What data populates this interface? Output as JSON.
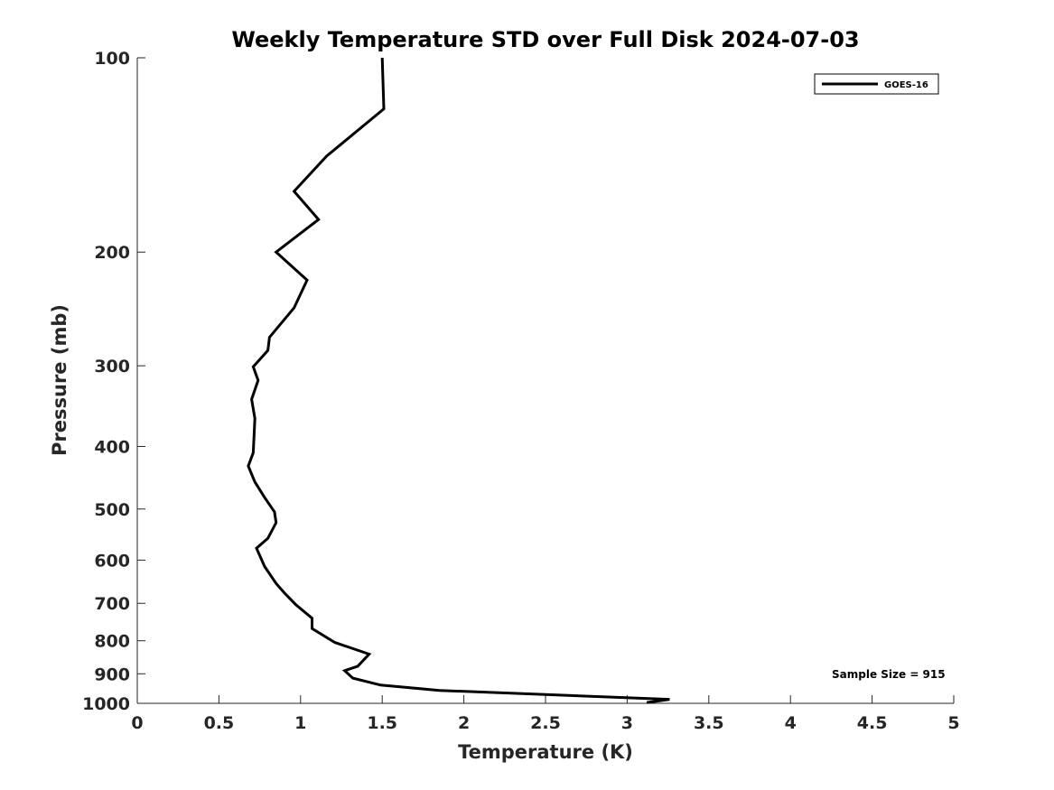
{
  "chart_data": {
    "type": "line",
    "title": "Weekly Temperature STD over Full Disk 2024-07-03",
    "xlabel": "Temperature (K)",
    "ylabel": "Pressure (mb)",
    "xlim": [
      0,
      5
    ],
    "ylim": [
      100,
      1000
    ],
    "yscale": "log",
    "y_reversed": true,
    "grid": false,
    "legend_position": "top-right",
    "x_ticks": [
      "0",
      "0.5",
      "1",
      "1.5",
      "2",
      "2.5",
      "3",
      "3.5",
      "4",
      "4.5",
      "5"
    ],
    "y_ticks": [
      "100",
      "200",
      "300",
      "400",
      "500",
      "600",
      "700",
      "800",
      "900",
      "1000"
    ],
    "series": [
      {
        "name": "GOES-16",
        "color": "#000000",
        "points": [
          [
            1.5,
            100
          ],
          [
            1.51,
            120
          ],
          [
            1.16,
            142
          ],
          [
            0.96,
            161
          ],
          [
            1.11,
            178
          ],
          [
            0.85,
            200
          ],
          [
            1.04,
            221
          ],
          [
            0.96,
            244
          ],
          [
            0.81,
            271
          ],
          [
            0.8,
            284
          ],
          [
            0.71,
            301
          ],
          [
            0.74,
            316
          ],
          [
            0.7,
            338
          ],
          [
            0.72,
            362
          ],
          [
            0.71,
            409
          ],
          [
            0.68,
            429
          ],
          [
            0.72,
            454
          ],
          [
            0.78,
            480
          ],
          [
            0.84,
            505
          ],
          [
            0.85,
            525
          ],
          [
            0.8,
            555
          ],
          [
            0.73,
            575
          ],
          [
            0.78,
            614
          ],
          [
            0.85,
            652
          ],
          [
            0.9,
            674
          ],
          [
            0.97,
            703
          ],
          [
            1.07,
            738
          ],
          [
            1.07,
            766
          ],
          [
            1.21,
            805
          ],
          [
            1.42,
            839
          ],
          [
            1.35,
            876
          ],
          [
            1.27,
            890
          ],
          [
            1.32,
            914
          ],
          [
            1.49,
            937
          ],
          [
            1.85,
            955
          ],
          [
            3.26,
            986
          ],
          [
            3.12,
            997
          ]
        ]
      }
    ],
    "annotations": [
      "Sample Size = 915"
    ]
  }
}
